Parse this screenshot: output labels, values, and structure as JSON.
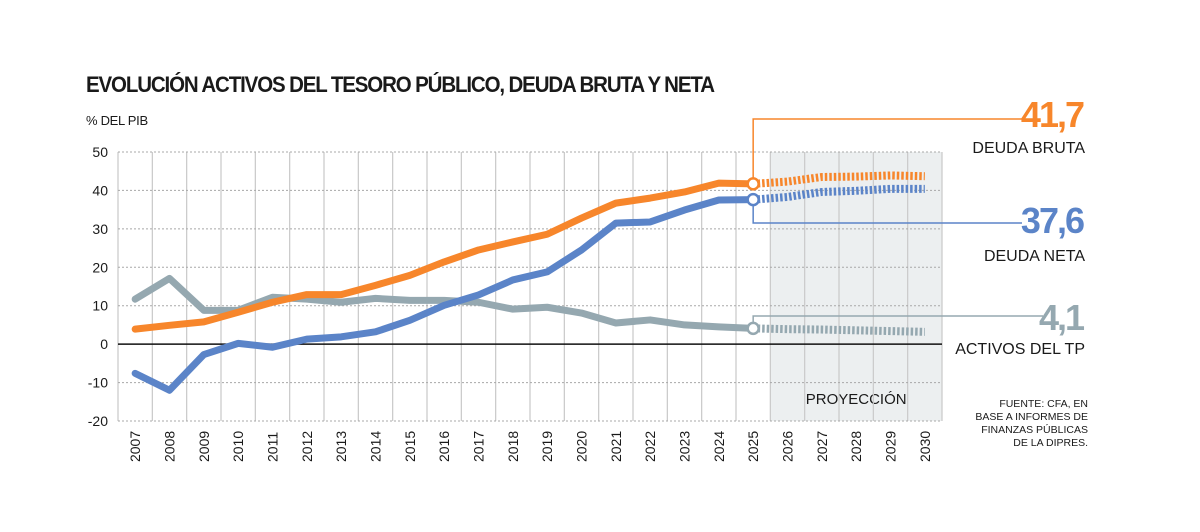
{
  "chart_data": {
    "type": "line",
    "title": "EVOLUCIÓN ACTIVOS DEL TESORO PÚBLICO, DEUDA BRUTA Y NETA",
    "ylabel": "% DEL PIB",
    "xlabel": "",
    "ylim": [
      -20,
      50
    ],
    "yticks": [
      50,
      40,
      30,
      20,
      10,
      0,
      -10,
      -20
    ],
    "grid": true,
    "x": [
      "2007",
      "2008",
      "2009",
      "2010",
      "2011",
      "2012",
      "2013",
      "2014",
      "2015",
      "2016",
      "2017",
      "2018",
      "2019",
      "2020",
      "2021",
      "2022",
      "2023",
      "2024",
      "2025",
      "2026",
      "2027",
      "2028",
      "2029",
      "2030"
    ],
    "projection_start": "2025",
    "projection_label": "PROYECCIÓN",
    "series": [
      {
        "name": "DEUDA BRUTA",
        "color": "#f7862b",
        "highlight_value": "41,7",
        "values": [
          3.9,
          4.9,
          5.8,
          8.3,
          10.9,
          12.9,
          12.9,
          15.3,
          17.9,
          21.4,
          24.5,
          26.6,
          28.6,
          32.8,
          36.7,
          38.0,
          39.6,
          41.9,
          41.7,
          42.3,
          43.5,
          43.6,
          43.9,
          43.7
        ]
      },
      {
        "name": "DEUDA NETA",
        "color": "#5b84c8",
        "highlight_value": "37,6",
        "values": [
          -7.6,
          -12.0,
          -2.7,
          0.2,
          -0.8,
          1.3,
          1.9,
          3.2,
          6.2,
          10.1,
          12.8,
          16.7,
          18.8,
          24.5,
          31.5,
          31.8,
          34.9,
          37.5,
          37.6,
          38.3,
          39.6,
          39.9,
          40.4,
          40.4
        ]
      },
      {
        "name": "ACTIVOS DEL TP",
        "color": "#95a8b0",
        "highlight_value": "4,1",
        "values": [
          11.7,
          17.1,
          8.8,
          8.8,
          12.2,
          11.7,
          10.9,
          11.9,
          11.4,
          11.4,
          10.9,
          9.1,
          9.6,
          8.1,
          5.5,
          6.3,
          5.0,
          4.5,
          4.1,
          3.9,
          3.8,
          3.6,
          3.4,
          3.2
        ]
      }
    ],
    "source": [
      "FUENTE: CFA, EN",
      "BASE A INFORMES DE",
      "FINANZAS PÚBLICAS",
      "DE LA DIPRES."
    ]
  }
}
